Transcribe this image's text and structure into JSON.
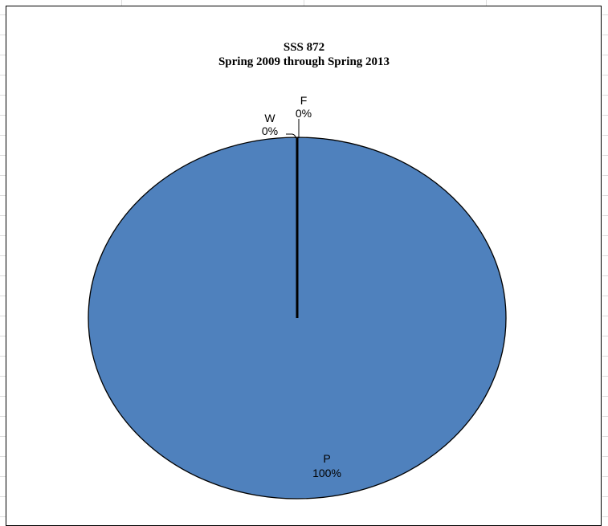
{
  "chart_data": {
    "type": "pie",
    "title": "SSS 872",
    "subtitle": "Spring 2009 through Spring 2013",
    "categories": [
      "P",
      "W",
      "F"
    ],
    "values": [
      100,
      0,
      0
    ],
    "percent_labels": [
      "100%",
      "0%",
      "0%"
    ],
    "colors": {
      "slice_fill": "#4F81BD",
      "slice_border": "#000000"
    }
  }
}
